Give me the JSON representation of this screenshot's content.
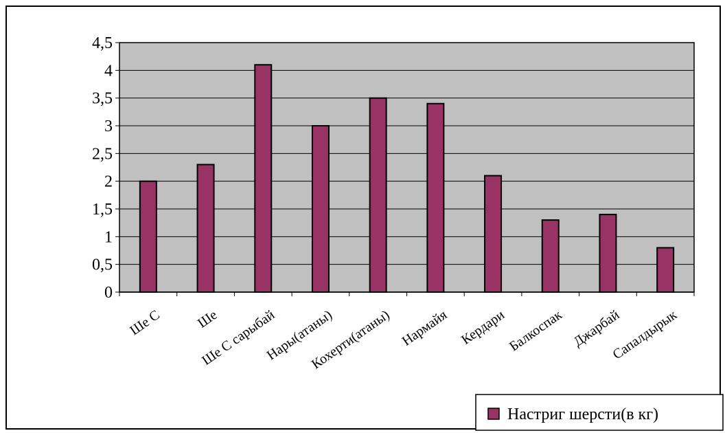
{
  "chart_data": {
    "type": "bar",
    "categories": [
      "Ше С",
      "Ше",
      "Ше С сарыбай",
      "Нары(атаны)",
      "Кохерти(атаны)",
      "Нармайя",
      "Кердари",
      "Балкоспак",
      "Джарбай",
      "Сапалдырык"
    ],
    "series": [
      {
        "name": "Настриг шерсти(в кг)",
        "values": [
          2.0,
          2.3,
          4.1,
          3.0,
          3.5,
          3.4,
          2.1,
          1.3,
          1.4,
          0.8
        ]
      }
    ],
    "yticks": [
      "0",
      "0,5",
      "1",
      "1,5",
      "2",
      "2,5",
      "3",
      "3,5",
      "4",
      "4,5"
    ],
    "ylim": [
      0,
      4.5
    ],
    "grid": true,
    "legend_position": "bottom-right",
    "colors": {
      "bar_fill": "#993366",
      "plot_background": "#c0c0c0",
      "grid": "#000000"
    }
  }
}
